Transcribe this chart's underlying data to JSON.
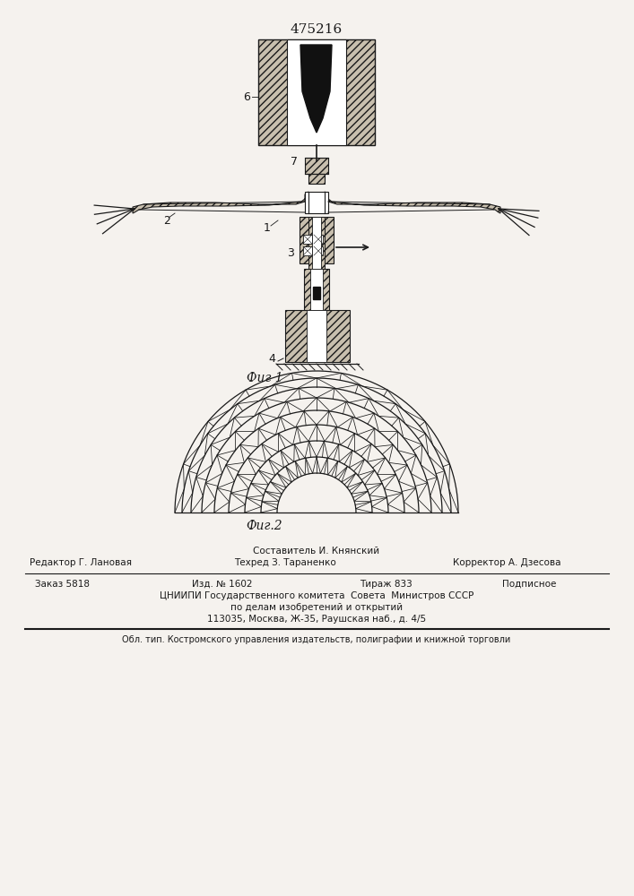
{
  "patent_number": "475216",
  "fig1_label": "Фиг 1",
  "fig2_label": "Фиг.2",
  "background_color": "#f5f2ee",
  "line_color": "#1a1a1a",
  "footer": {
    "composer": "Составитель И. Княнский",
    "editor": "Редактор Г. Лановая",
    "techred": "Техред З. Тараненко",
    "corrector": "Корректор А. Дзесова",
    "order": "Заказ 5818",
    "izd": "Изд. № 1602",
    "tirazh": "Тираж 833",
    "podpisnoe": "Подписное",
    "tsniipи": "ЦНИИПИ Государственного комитета  Совета  Министров СССР",
    "po_delam": "по делам изобретений и открытий",
    "address": "113035, Москва, Ж-35, Раушская наб., д. 4/5",
    "obl": "Обл. тип. Костромского управления издательств, полиграфии и книжной торговли"
  }
}
